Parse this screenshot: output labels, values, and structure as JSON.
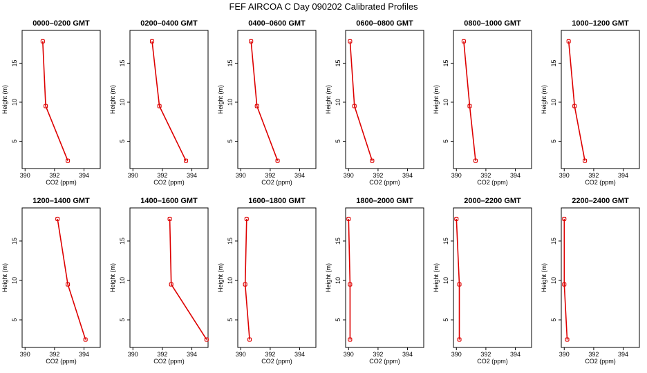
{
  "figure_title": "FEF AIRCOA C  Day 090202  Calibrated Profiles",
  "colors": {
    "series": "#dd0000",
    "axes": "#000000",
    "background": "#ffffff"
  },
  "chart_data": [
    {
      "type": "line",
      "title": "0000–0200 GMT",
      "xlabel": "CO2 (ppm)",
      "ylabel": "Height (m)",
      "xlim": [
        389.8,
        395.1
      ],
      "ylim": [
        1.5,
        19.2
      ],
      "xticks": [
        390,
        392,
        394
      ],
      "yticks": [
        5,
        10,
        15
      ],
      "grid": false,
      "series": [
        {
          "x": [
            391.2,
            391.4,
            392.9
          ],
          "y": [
            17.8,
            9.5,
            2.5
          ]
        }
      ]
    },
    {
      "type": "line",
      "title": "0200–0400 GMT",
      "xlabel": "CO2 (ppm)",
      "ylabel": "Height (m)",
      "xlim": [
        389.8,
        395.1
      ],
      "ylim": [
        1.5,
        19.2
      ],
      "xticks": [
        390,
        392,
        394
      ],
      "yticks": [
        5,
        10,
        15
      ],
      "grid": false,
      "series": [
        {
          "x": [
            391.3,
            391.8,
            393.6
          ],
          "y": [
            17.8,
            9.5,
            2.5
          ]
        }
      ]
    },
    {
      "type": "line",
      "title": "0400–0600 GMT",
      "xlabel": "CO2 (ppm)",
      "ylabel": "Height (m)",
      "xlim": [
        389.8,
        395.1
      ],
      "ylim": [
        1.5,
        19.2
      ],
      "xticks": [
        390,
        392,
        394
      ],
      "yticks": [
        5,
        10,
        15
      ],
      "grid": false,
      "series": [
        {
          "x": [
            390.7,
            391.1,
            392.5
          ],
          "y": [
            17.8,
            9.5,
            2.5
          ]
        }
      ]
    },
    {
      "type": "line",
      "title": "0600–0800 GMT",
      "xlabel": "CO2 (ppm)",
      "ylabel": "Height (m)",
      "xlim": [
        389.8,
        395.1
      ],
      "ylim": [
        1.5,
        19.2
      ],
      "xticks": [
        390,
        392,
        394
      ],
      "yticks": [
        5,
        10,
        15
      ],
      "grid": false,
      "series": [
        {
          "x": [
            390.1,
            390.4,
            391.6
          ],
          "y": [
            17.8,
            9.5,
            2.5
          ]
        }
      ]
    },
    {
      "type": "line",
      "title": "0800–1000 GMT",
      "xlabel": "CO2 (ppm)",
      "ylabel": "Height (m)",
      "xlim": [
        389.8,
        395.1
      ],
      "ylim": [
        1.5,
        19.2
      ],
      "xticks": [
        390,
        392,
        394
      ],
      "yticks": [
        5,
        10,
        15
      ],
      "grid": false,
      "series": [
        {
          "x": [
            390.5,
            390.9,
            391.3
          ],
          "y": [
            17.8,
            9.5,
            2.5
          ]
        }
      ]
    },
    {
      "type": "line",
      "title": "1000–1200 GMT",
      "xlabel": "CO2 (ppm)",
      "ylabel": "Height (m)",
      "xlim": [
        389.8,
        395.1
      ],
      "ylim": [
        1.5,
        19.2
      ],
      "xticks": [
        390,
        392,
        394
      ],
      "yticks": [
        5,
        10,
        15
      ],
      "grid": false,
      "series": [
        {
          "x": [
            390.3,
            390.7,
            391.4
          ],
          "y": [
            17.8,
            9.5,
            2.5
          ]
        }
      ]
    },
    {
      "type": "line",
      "title": "1200–1400 GMT",
      "xlabel": "CO2 (ppm)",
      "ylabel": "Height (m)",
      "xlim": [
        389.8,
        395.1
      ],
      "ylim": [
        1.5,
        19.2
      ],
      "xticks": [
        390,
        392,
        394
      ],
      "yticks": [
        5,
        10,
        15
      ],
      "grid": false,
      "series": [
        {
          "x": [
            392.2,
            392.9,
            394.1
          ],
          "y": [
            17.8,
            9.5,
            2.5
          ]
        }
      ]
    },
    {
      "type": "line",
      "title": "1400–1600 GMT",
      "xlabel": "CO2 (ppm)",
      "ylabel": "Height (m)",
      "xlim": [
        389.8,
        395.1
      ],
      "ylim": [
        1.5,
        19.2
      ],
      "xticks": [
        390,
        392,
        394
      ],
      "yticks": [
        5,
        10,
        15
      ],
      "grid": false,
      "series": [
        {
          "x": [
            392.5,
            392.6,
            395.0
          ],
          "y": [
            17.8,
            9.5,
            2.5
          ]
        }
      ]
    },
    {
      "type": "line",
      "title": "1600–1800 GMT",
      "xlabel": "CO2 (ppm)",
      "ylabel": "Height (m)",
      "xlim": [
        389.8,
        395.1
      ],
      "ylim": [
        1.5,
        19.2
      ],
      "xticks": [
        390,
        392,
        394
      ],
      "yticks": [
        5,
        10,
        15
      ],
      "grid": false,
      "series": [
        {
          "x": [
            390.4,
            390.3,
            390.6
          ],
          "y": [
            17.8,
            9.5,
            2.5
          ]
        }
      ]
    },
    {
      "type": "line",
      "title": "1800–2000 GMT",
      "xlabel": "CO2 (ppm)",
      "ylabel": "Height (m)",
      "xlim": [
        389.8,
        395.1
      ],
      "ylim": [
        1.5,
        19.2
      ],
      "xticks": [
        390,
        392,
        394
      ],
      "yticks": [
        5,
        10,
        15
      ],
      "grid": false,
      "series": [
        {
          "x": [
            390.0,
            390.1,
            390.1
          ],
          "y": [
            17.8,
            9.5,
            2.5
          ]
        }
      ]
    },
    {
      "type": "line",
      "title": "2000–2200 GMT",
      "xlabel": "CO2 (ppm)",
      "ylabel": "Height (m)",
      "xlim": [
        389.8,
        395.1
      ],
      "ylim": [
        1.5,
        19.2
      ],
      "xticks": [
        390,
        392,
        394
      ],
      "yticks": [
        5,
        10,
        15
      ],
      "grid": false,
      "series": [
        {
          "x": [
            390.0,
            390.2,
            390.2
          ],
          "y": [
            17.8,
            9.5,
            2.5
          ]
        }
      ]
    },
    {
      "type": "line",
      "title": "2200–2400 GMT",
      "xlabel": "CO2 (ppm)",
      "ylabel": "Height (m)",
      "xlim": [
        389.8,
        395.1
      ],
      "ylim": [
        1.5,
        19.2
      ],
      "xticks": [
        390,
        392,
        394
      ],
      "yticks": [
        5,
        10,
        15
      ],
      "grid": false,
      "series": [
        {
          "x": [
            390.0,
            390.0,
            390.2
          ],
          "y": [
            17.8,
            9.5,
            2.5
          ]
        }
      ]
    }
  ]
}
